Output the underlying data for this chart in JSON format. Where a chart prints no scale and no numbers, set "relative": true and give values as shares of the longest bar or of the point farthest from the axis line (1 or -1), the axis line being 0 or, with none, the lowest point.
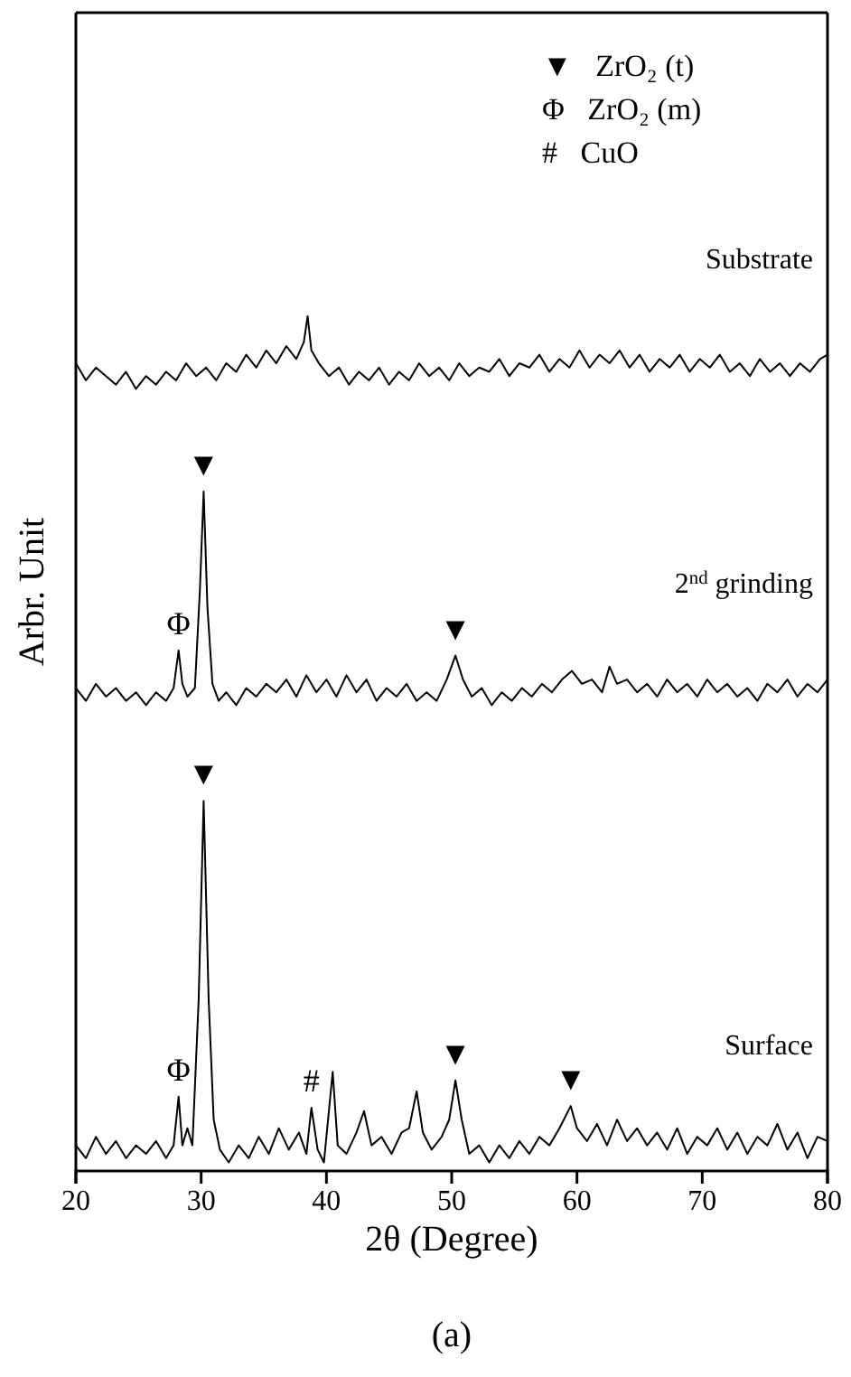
{
  "chart_data": {
    "type": "line",
    "title": "(a)",
    "xlabel": "2θ (Degree)",
    "ylabel": "Arbr. Unit",
    "relative": true,
    "xlim": [
      20,
      80
    ],
    "xticks": [
      20,
      30,
      40,
      50,
      60,
      70,
      80
    ],
    "series": [
      {
        "name": "Substrate",
        "color": "#000000",
        "x": [
          20,
          20.8,
          21.6,
          22.4,
          23.2,
          24,
          24.8,
          25.6,
          26.4,
          27.2,
          28,
          28.8,
          29.6,
          30.4,
          31.2,
          32,
          32.8,
          33.6,
          34.4,
          35.2,
          36,
          36.8,
          37.6,
          38.2,
          38.5,
          38.8,
          39.4,
          40.2,
          41,
          41.8,
          42.6,
          43.4,
          44.2,
          45,
          45.8,
          46.6,
          47.4,
          48.2,
          49,
          49.8,
          50.6,
          51.4,
          52.2,
          53,
          53.8,
          54.6,
          55.4,
          56.2,
          57,
          57.8,
          58.6,
          59.4,
          60.2,
          61,
          61.8,
          62.6,
          63.4,
          64.2,
          65,
          65.8,
          66.6,
          67.4,
          68.2,
          69,
          69.8,
          70.6,
          71.4,
          72.2,
          73,
          73.8,
          74.6,
          75.4,
          76.2,
          77,
          77.8,
          78.6,
          79.4,
          80
        ],
        "values": [
          0.945,
          0.925,
          0.94,
          0.93,
          0.92,
          0.935,
          0.915,
          0.93,
          0.92,
          0.935,
          0.925,
          0.945,
          0.93,
          0.94,
          0.925,
          0.945,
          0.935,
          0.955,
          0.94,
          0.96,
          0.945,
          0.965,
          0.95,
          0.97,
          1.0,
          0.96,
          0.945,
          0.93,
          0.94,
          0.92,
          0.935,
          0.925,
          0.94,
          0.92,
          0.935,
          0.925,
          0.945,
          0.93,
          0.94,
          0.925,
          0.945,
          0.93,
          0.94,
          0.935,
          0.95,
          0.93,
          0.945,
          0.94,
          0.955,
          0.935,
          0.95,
          0.94,
          0.96,
          0.94,
          0.955,
          0.945,
          0.96,
          0.94,
          0.955,
          0.935,
          0.95,
          0.94,
          0.955,
          0.935,
          0.95,
          0.94,
          0.955,
          0.935,
          0.945,
          0.93,
          0.95,
          0.935,
          0.945,
          0.93,
          0.945,
          0.935,
          0.95,
          0.955
        ]
      },
      {
        "name": "2$^{nd}$ grinding",
        "color": "#000000",
        "x": [
          20,
          20.8,
          21.6,
          22.4,
          23.2,
          24,
          24.8,
          25.6,
          26.4,
          27.2,
          27.8,
          28.2,
          28.5,
          28.9,
          29.5,
          29.9,
          30.2,
          30.5,
          30.9,
          31.4,
          32,
          32.8,
          33.6,
          34.4,
          35.2,
          36,
          36.8,
          37.6,
          38.4,
          39.2,
          40,
          40.8,
          41.6,
          42.4,
          43.2,
          44,
          44.8,
          45.6,
          46.4,
          47.2,
          48,
          48.8,
          49.6,
          50.3,
          50.9,
          51.6,
          52.4,
          53.2,
          54,
          54.8,
          55.6,
          56.4,
          57.2,
          58,
          58.8,
          59.6,
          60.4,
          61.2,
          62,
          62.6,
          63.2,
          64,
          64.8,
          65.6,
          66.4,
          67.2,
          68,
          68.8,
          69.6,
          70.4,
          71.2,
          72,
          72.8,
          73.6,
          74.4,
          75.2,
          76,
          76.8,
          77.6,
          78.4,
          79.2,
          80
        ],
        "values": [
          0.565,
          0.55,
          0.57,
          0.555,
          0.565,
          0.55,
          0.56,
          0.545,
          0.56,
          0.55,
          0.565,
          0.609,
          0.57,
          0.555,
          0.565,
          0.68,
          0.795,
          0.66,
          0.57,
          0.55,
          0.56,
          0.545,
          0.565,
          0.555,
          0.57,
          0.56,
          0.575,
          0.555,
          0.58,
          0.56,
          0.575,
          0.555,
          0.58,
          0.56,
          0.575,
          0.55,
          0.565,
          0.555,
          0.57,
          0.55,
          0.56,
          0.55,
          0.575,
          0.603,
          0.575,
          0.555,
          0.565,
          0.545,
          0.56,
          0.55,
          0.565,
          0.555,
          0.57,
          0.56,
          0.575,
          0.585,
          0.57,
          0.575,
          0.56,
          0.59,
          0.57,
          0.575,
          0.56,
          0.57,
          0.555,
          0.575,
          0.56,
          0.57,
          0.555,
          0.575,
          0.56,
          0.57,
          0.555,
          0.565,
          0.55,
          0.57,
          0.56,
          0.575,
          0.555,
          0.57,
          0.56,
          0.575
        ]
      },
      {
        "name": "Surface",
        "color": "#000000",
        "x": [
          20,
          20.8,
          21.6,
          22.4,
          23.2,
          24,
          24.8,
          25.6,
          26.4,
          27.2,
          27.8,
          28.2,
          28.5,
          28.9,
          29.3,
          29.8,
          30.2,
          30.6,
          31,
          31.5,
          32.2,
          33,
          33.8,
          34.6,
          35.4,
          36.2,
          37,
          37.8,
          38.4,
          38.8,
          39.3,
          39.8,
          40.5,
          40.9,
          41.6,
          42.4,
          43,
          43.6,
          44.4,
          45.2,
          46,
          46.6,
          47.2,
          47.7,
          48.4,
          49.2,
          49.8,
          50.3,
          50.8,
          51.4,
          52.2,
          53,
          53.8,
          54.6,
          55.4,
          56.2,
          57,
          57.8,
          58.6,
          59.5,
          60,
          60.8,
          61.6,
          62.4,
          63.2,
          64,
          64.8,
          65.6,
          66.4,
          67.2,
          68,
          68.8,
          69.6,
          70.4,
          71.2,
          72,
          72.8,
          73.6,
          74.4,
          75.2,
          76,
          76.8,
          77.6,
          78.4,
          79.2,
          80
        ],
        "values": [
          0.03,
          0.015,
          0.04,
          0.02,
          0.035,
          0.015,
          0.03,
          0.02,
          0.035,
          0.015,
          0.03,
          0.087,
          0.03,
          0.05,
          0.03,
          0.2,
          0.433,
          0.2,
          0.06,
          0.025,
          0.01,
          0.03,
          0.015,
          0.04,
          0.02,
          0.05,
          0.025,
          0.045,
          0.02,
          0.074,
          0.025,
          0.01,
          0.116,
          0.03,
          0.02,
          0.045,
          0.07,
          0.03,
          0.04,
          0.02,
          0.045,
          0.05,
          0.093,
          0.045,
          0.025,
          0.04,
          0.06,
          0.106,
          0.06,
          0.02,
          0.03,
          0.01,
          0.03,
          0.015,
          0.035,
          0.02,
          0.04,
          0.03,
          0.05,
          0.076,
          0.05,
          0.035,
          0.055,
          0.03,
          0.06,
          0.035,
          0.05,
          0.03,
          0.045,
          0.025,
          0.05,
          0.02,
          0.04,
          0.03,
          0.05,
          0.025,
          0.045,
          0.02,
          0.04,
          0.03,
          0.055,
          0.025,
          0.045,
          0.015,
          0.04,
          0.035
        ]
      }
    ],
    "annotations": [
      "▼   ZrO₂ (t)",
      "Φ   ZrO₂ (m)",
      "#   CuO",
      {
        "text": "Φ",
        "x": 28.2,
        "y": 0.609
      },
      {
        "text": "▼",
        "x": 30.2,
        "y": 0.795
      },
      {
        "text": "▼",
        "x": 50.3,
        "y": 0.603
      },
      {
        "text": "Φ",
        "x": 28.2,
        "y": 0.087
      },
      {
        "text": "▼",
        "x": 30.2,
        "y": 0.433
      },
      {
        "text": "#",
        "x": 38.8,
        "y": 0.074
      },
      {
        "text": "▼",
        "x": 50.3,
        "y": 0.106
      },
      {
        "text": "▼",
        "x": 59.5,
        "y": 0.076
      }
    ]
  }
}
